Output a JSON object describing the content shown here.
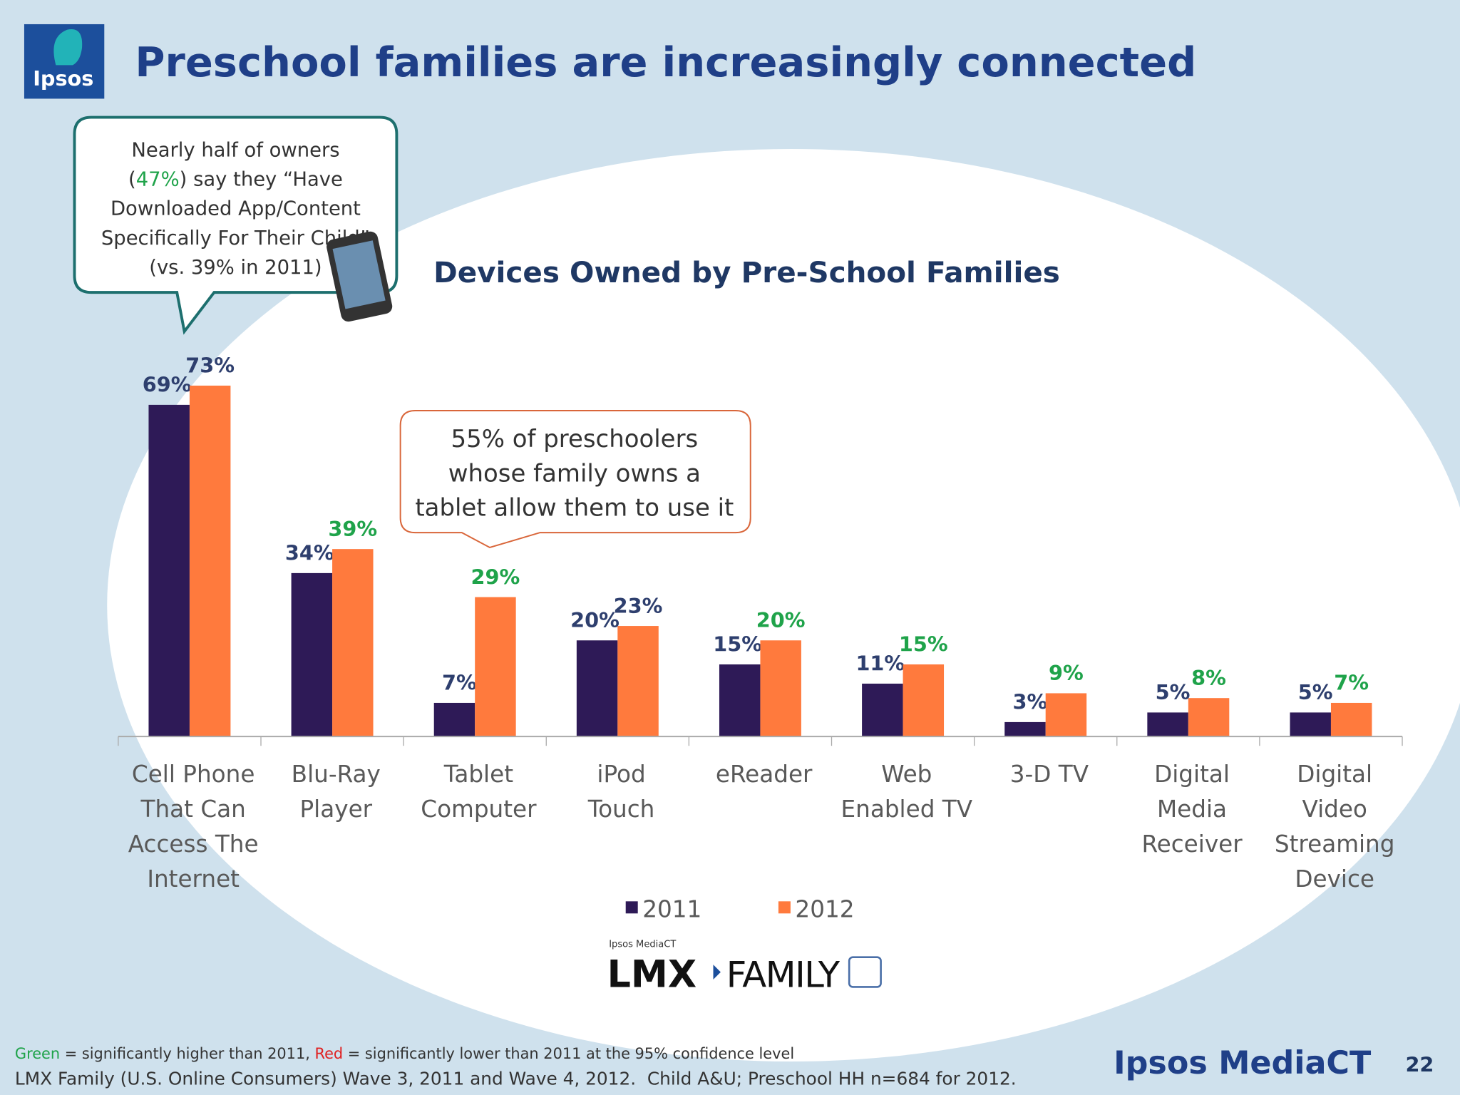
{
  "logo_text": "Ipsos",
  "title": "Preschool families are increasingly connected",
  "callout_owners": {
    "lines": [
      [
        "Nearly half of owners"
      ],
      [
        "(",
        "47%",
        ") say they “Have"
      ],
      [
        "Downloaded App/Content"
      ],
      [
        "Specifically For Their Child”"
      ],
      [
        "(vs. 39% in 2011)"
      ]
    ]
  },
  "callout_tablet": {
    "lines": [
      "55% of preschoolers",
      "whose family owns a",
      "tablet allow them to use it"
    ]
  },
  "chart_data": {
    "type": "bar",
    "title": "Devices Owned by Pre-School Families",
    "categories": [
      [
        "Cell Phone",
        "That Can",
        "Access The",
        "Internet"
      ],
      [
        "Blu-Ray",
        "Player"
      ],
      [
        "Tablet",
        "Computer"
      ],
      [
        "iPod",
        "Touch"
      ],
      [
        "eReader"
      ],
      [
        "Web",
        "Enabled TV"
      ],
      [
        "3-D TV"
      ],
      [
        "Digital",
        "Media",
        "Receiver"
      ],
      [
        "Digital",
        "Video",
        "Streaming",
        "Device"
      ]
    ],
    "series": [
      {
        "name": "2011",
        "color": "#2e1a57",
        "values": [
          69,
          34,
          7,
          20,
          15,
          11,
          3,
          5,
          5
        ],
        "value_labels": [
          "69%",
          "34%",
          "7%",
          "20%",
          "15%",
          "11%",
          "3%",
          "5%",
          "5%"
        ],
        "value_label_colors": [
          "#2e3f6e",
          "#2e3f6e",
          "#2e3f6e",
          "#2e3f6e",
          "#2e3f6e",
          "#2e3f6e",
          "#2e3f6e",
          "#2e3f6e",
          "#2e3f6e"
        ]
      },
      {
        "name": "2012",
        "color": "#ff7a3d",
        "values": [
          73,
          39,
          29,
          23,
          20,
          15,
          9,
          8,
          7
        ],
        "value_labels": [
          "73%",
          "39%",
          "29%",
          "23%",
          "20%",
          "15%",
          "9%",
          "8%",
          "7%"
        ],
        "value_label_colors": [
          "#2e3f6e",
          "#1fa34a",
          "#1fa34a",
          "#2e3f6e",
          "#1fa34a",
          "#1fa34a",
          "#1fa34a",
          "#1fa34a",
          "#1fa34a"
        ]
      }
    ],
    "ylim": [
      0,
      80
    ],
    "grid": false,
    "legend": "bottom"
  },
  "lmx_caption": "Ipsos MediaCT",
  "lmx_logo": [
    "LMX",
    "FAMILY"
  ],
  "footnotes": [
    [
      "Green",
      " = significantly higher than 2011, ",
      "Red",
      " = significantly lower than 2011 at the 95% confidence level"
    ],
    [
      "LMX Family (U.S. Online Consumers) Wave 3, 2011 and Wave 4, 2012.  Child A&U; Preschool HH n=684 for 2012."
    ]
  ],
  "brand": "Ipsos MediaCT",
  "page_number": "22"
}
